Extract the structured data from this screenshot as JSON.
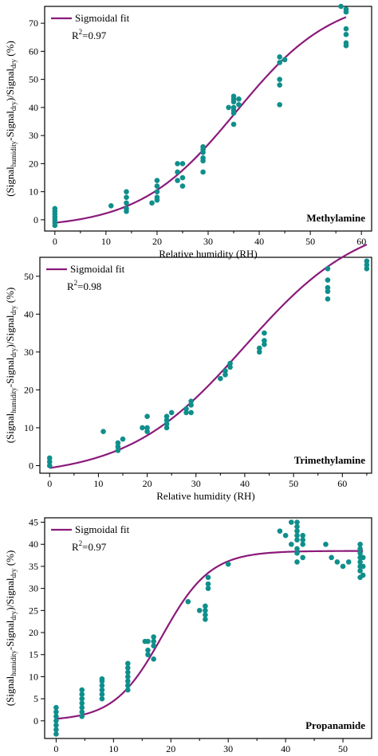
{
  "chart_data": [
    {
      "type": "scatter",
      "title": "Methylamine",
      "xlabel": "Relative humidity (RH)",
      "ylabel_parts": [
        "(Signal",
        "humidity",
        "-Signal",
        "dry",
        ")/Signal",
        "dry",
        " (%)"
      ],
      "xlim": [
        -2,
        62
      ],
      "ylim": [
        -4,
        76
      ],
      "xticks": [
        0,
        10,
        20,
        30,
        40,
        50,
        60
      ],
      "yticks": [
        0,
        10,
        20,
        30,
        40,
        50,
        60,
        70
      ],
      "legend": "Sigmoidal fit",
      "r2_label": "R",
      "r2_value": "=0.97",
      "fit": {
        "A1": -3,
        "A2": 80,
        "x0": 35.5,
        "dx": 9.5
      },
      "points": [
        [
          0,
          -2
        ],
        [
          0,
          -1
        ],
        [
          0,
          0
        ],
        [
          0,
          1
        ],
        [
          0,
          2
        ],
        [
          0,
          3
        ],
        [
          0,
          4
        ],
        [
          11,
          5
        ],
        [
          14,
          3
        ],
        [
          14,
          4
        ],
        [
          14,
          6
        ],
        [
          14,
          8
        ],
        [
          14,
          10
        ],
        [
          19,
          6
        ],
        [
          20,
          7
        ],
        [
          20,
          8
        ],
        [
          20,
          10
        ],
        [
          20,
          12
        ],
        [
          20,
          14
        ],
        [
          24,
          14
        ],
        [
          24,
          17
        ],
        [
          25,
          12
        ],
        [
          24,
          20
        ],
        [
          25,
          20
        ],
        [
          25,
          15
        ],
        [
          29,
          17
        ],
        [
          29,
          21
        ],
        [
          29,
          22
        ],
        [
          29,
          24
        ],
        [
          29,
          25
        ],
        [
          29,
          26
        ],
        [
          34,
          40
        ],
        [
          35,
          34
        ],
        [
          35,
          38
        ],
        [
          35,
          39
        ],
        [
          35,
          40
        ],
        [
          35,
          42
        ],
        [
          35,
          43
        ],
        [
          35,
          44
        ],
        [
          36,
          43
        ],
        [
          36,
          41
        ],
        [
          44,
          41
        ],
        [
          44,
          48
        ],
        [
          44,
          50
        ],
        [
          44,
          56
        ],
        [
          44,
          58
        ],
        [
          45,
          57
        ],
        [
          56,
          76
        ],
        [
          57,
          62
        ],
        [
          57,
          63
        ],
        [
          57,
          66
        ],
        [
          57,
          68
        ],
        [
          57,
          74
        ],
        [
          57,
          75
        ]
      ]
    },
    {
      "type": "scatter",
      "title": "Trimethylamine",
      "xlabel": "Relative humidity (RH)",
      "ylabel_parts": [
        "(Signal",
        "humidity",
        "-Signal",
        "dry",
        ")/Signal",
        "dry",
        "  (%)"
      ],
      "xlim": [
        -2,
        66
      ],
      "ylim": [
        -2,
        55
      ],
      "xticks": [
        0,
        10,
        20,
        30,
        40,
        50,
        60
      ],
      "yticks": [
        0,
        10,
        20,
        30,
        40,
        50
      ],
      "legend": "Sigmoidal fit",
      "r2_label": "R",
      "r2_value": "=0.98",
      "fit": {
        "A1": -3,
        "A2": 66,
        "x0": 40,
        "dx": 12
      },
      "points": [
        [
          0,
          0
        ],
        [
          0,
          1
        ],
        [
          0,
          2
        ],
        [
          11,
          9
        ],
        [
          14,
          4
        ],
        [
          14,
          5
        ],
        [
          14,
          6
        ],
        [
          15,
          7
        ],
        [
          19,
          10
        ],
        [
          20,
          9
        ],
        [
          20,
          10
        ],
        [
          20,
          13
        ],
        [
          24,
          10
        ],
        [
          24,
          11
        ],
        [
          24,
          12
        ],
        [
          24,
          13
        ],
        [
          25,
          14
        ],
        [
          28,
          14
        ],
        [
          28,
          15
        ],
        [
          29,
          14
        ],
        [
          29,
          16
        ],
        [
          29,
          17
        ],
        [
          35,
          23
        ],
        [
          36,
          24
        ],
        [
          36,
          25
        ],
        [
          37,
          26
        ],
        [
          37,
          27
        ],
        [
          43,
          30
        ],
        [
          43,
          31
        ],
        [
          44,
          32
        ],
        [
          44,
          33
        ],
        [
          44,
          35
        ],
        [
          57,
          44
        ],
        [
          57,
          46
        ],
        [
          57,
          47
        ],
        [
          57,
          49
        ],
        [
          57,
          52
        ],
        [
          65,
          52
        ],
        [
          65,
          53
        ],
        [
          65,
          54
        ]
      ]
    },
    {
      "type": "scatter",
      "title": "Propanamide",
      "xlabel": "Relative humidity (RH)",
      "ylabel_parts": [
        "(Signal",
        "humidity",
        "-Signal",
        "dry",
        ")/Signal",
        "dry",
        " (%)"
      ],
      "xlim": [
        -2,
        55
      ],
      "ylim": [
        -4,
        46
      ],
      "xticks": [
        0,
        10,
        20,
        30,
        40,
        50
      ],
      "yticks": [
        0,
        5,
        10,
        15,
        20,
        25,
        30,
        35,
        40,
        45
      ],
      "legend": "Sigmoidal fit",
      "r2_label": "R",
      "r2_value": "=0.97",
      "fit": {
        "A1": 0,
        "A2": 38.5,
        "x0": 18.5,
        "dx": 4.2
      },
      "points": [
        [
          0,
          -2
        ],
        [
          0,
          -1
        ],
        [
          0,
          0
        ],
        [
          0,
          1
        ],
        [
          0,
          2
        ],
        [
          0,
          -3
        ],
        [
          0,
          3
        ],
        [
          4.5,
          1
        ],
        [
          4.5,
          2
        ],
        [
          4.5,
          3
        ],
        [
          4.5,
          4
        ],
        [
          4.5,
          5
        ],
        [
          4.5,
          6
        ],
        [
          4.5,
          7
        ],
        [
          8,
          5
        ],
        [
          8,
          6
        ],
        [
          8,
          7
        ],
        [
          8,
          8
        ],
        [
          8,
          9
        ],
        [
          8,
          9.5
        ],
        [
          12.5,
          7
        ],
        [
          12.5,
          8
        ],
        [
          12.5,
          9
        ],
        [
          12.5,
          10
        ],
        [
          12.5,
          11
        ],
        [
          12.5,
          12
        ],
        [
          12.5,
          13
        ],
        [
          16,
          18
        ],
        [
          16,
          15
        ],
        [
          16,
          16
        ],
        [
          17,
          14
        ],
        [
          17,
          17
        ],
        [
          17,
          18
        ],
        [
          17,
          19
        ],
        [
          15.5,
          18
        ],
        [
          23,
          27
        ],
        [
          25,
          25
        ],
        [
          26,
          24
        ],
        [
          26,
          23
        ],
        [
          26,
          25
        ],
        [
          26,
          26
        ],
        [
          26.5,
          30
        ],
        [
          26.5,
          31
        ],
        [
          26.5,
          32.5
        ],
        [
          30,
          35.5
        ],
        [
          39,
          43
        ],
        [
          40,
          42
        ],
        [
          41,
          45
        ],
        [
          41,
          40
        ],
        [
          42,
          36
        ],
        [
          42,
          38
        ],
        [
          42,
          39
        ],
        [
          42,
          41
        ],
        [
          42,
          42
        ],
        [
          42,
          43
        ],
        [
          42,
          44
        ],
        [
          42,
          45
        ],
        [
          43,
          37
        ],
        [
          43,
          40
        ],
        [
          43,
          41
        ],
        [
          43,
          42
        ],
        [
          47,
          40
        ],
        [
          48,
          37
        ],
        [
          49,
          36
        ],
        [
          50,
          35
        ],
        [
          51,
          36
        ],
        [
          53,
          32.5
        ],
        [
          53,
          34
        ],
        [
          53,
          35
        ],
        [
          53,
          36
        ],
        [
          53,
          37
        ],
        [
          53,
          38
        ],
        [
          53,
          39
        ],
        [
          53,
          40
        ],
        [
          53.5,
          33
        ],
        [
          53.5,
          35
        ],
        [
          53.5,
          37
        ]
      ]
    }
  ]
}
